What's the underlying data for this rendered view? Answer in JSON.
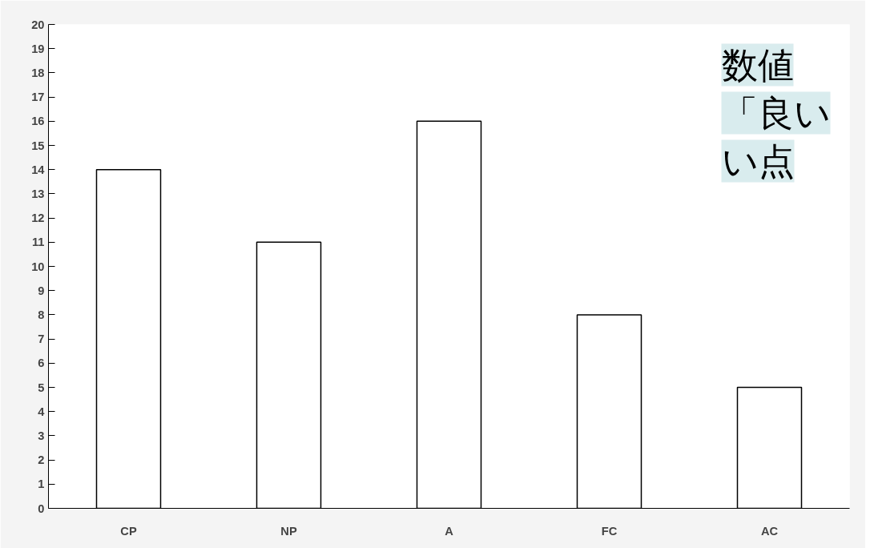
{
  "chart_data": {
    "type": "bar",
    "categories": [
      "CP",
      "NP",
      "A",
      "FC",
      "AC"
    ],
    "values": [
      14,
      11,
      16,
      8,
      5
    ],
    "color": "#ffffff",
    "ylim": [
      0,
      20
    ],
    "yticks": [
      0,
      1,
      2,
      3,
      4,
      5,
      6,
      7,
      8,
      9,
      10,
      11,
      12,
      13,
      14,
      15,
      16,
      17,
      18,
      19,
      20
    ],
    "grid": false,
    "annotations": [
      "数値",
      "「良い",
      "い点"
    ]
  }
}
